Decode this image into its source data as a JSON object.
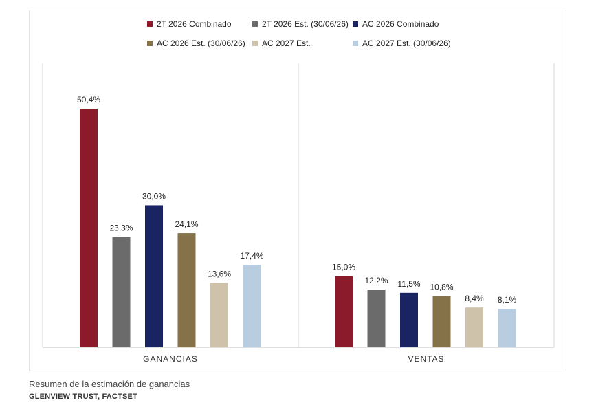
{
  "chart_data": {
    "type": "bar",
    "categories": [
      "GANANCIAS",
      "VENTAS"
    ],
    "series": [
      {
        "name": "2T 2026 Combinado",
        "color": "#8b1a2b",
        "values": [
          50.4,
          15.0
        ],
        "labels": [
          "50,4%",
          "15,0%"
        ]
      },
      {
        "name": "2T 2026 Est. (30/06/26)",
        "color": "#6b6b6b",
        "values": [
          23.3,
          12.2
        ],
        "labels": [
          "23,3%",
          "12,2%"
        ]
      },
      {
        "name": "AC 2026 Combinado",
        "color": "#1b2463",
        "values": [
          30.0,
          11.5
        ],
        "labels": [
          "30,0%",
          "11,5%"
        ]
      },
      {
        "name": "AC 2026 Est. (30/06/26)",
        "color": "#857249",
        "values": [
          24.1,
          10.8
        ],
        "labels": [
          "24,1%",
          "10,8%"
        ]
      },
      {
        "name": "AC 2027 Est.",
        "color": "#cfc2ab",
        "values": [
          13.6,
          8.4
        ],
        "labels": [
          "13,6%",
          "8,4%"
        ]
      },
      {
        "name": "AC 2027 Est. (30/06/26)",
        "color": "#b8cde0",
        "values": [
          17.4,
          8.1
        ],
        "labels": [
          "17,4%",
          "8,1%"
        ]
      }
    ],
    "ylim": [
      0,
      50.4
    ],
    "grid": false,
    "legend_position": "top"
  },
  "caption": "Resumen de la estimación de ganancias",
  "source": "GLENVIEW TRUST, FACTSET"
}
